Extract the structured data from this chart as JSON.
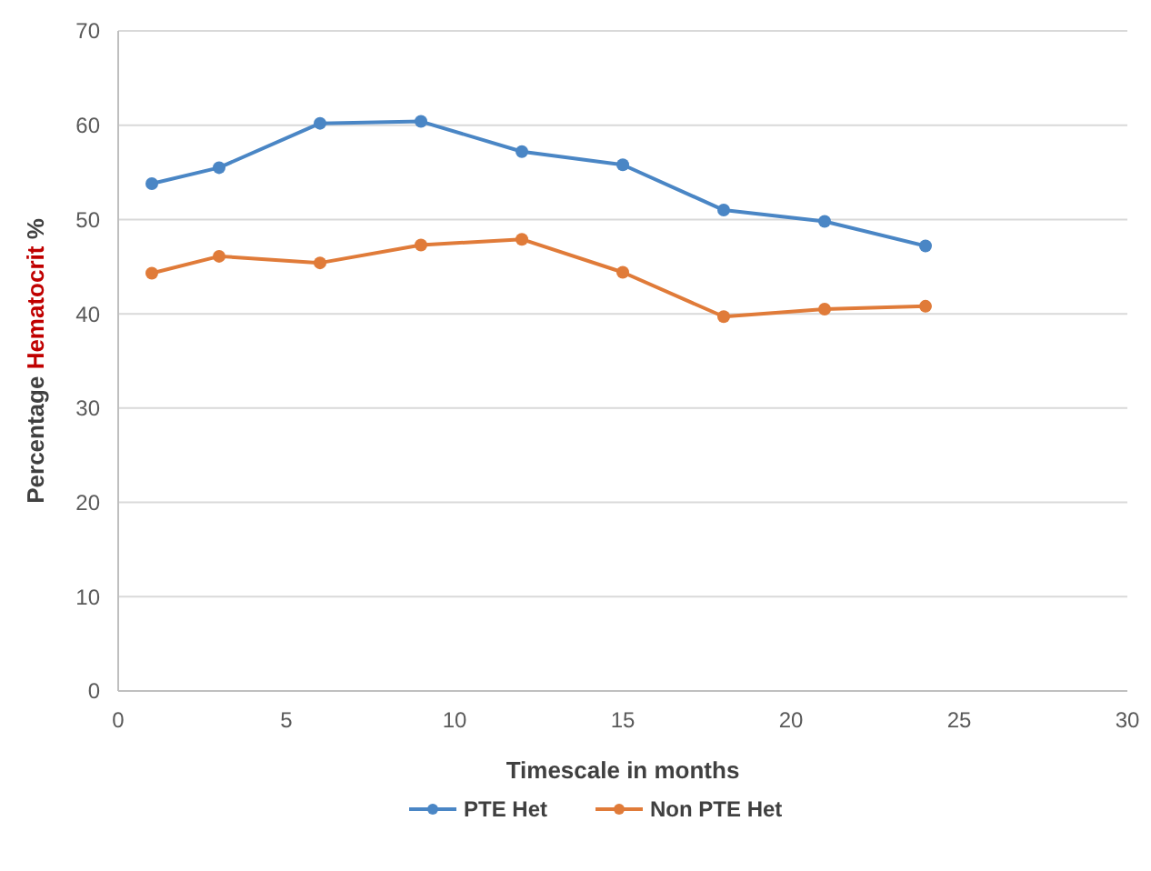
{
  "chart_data": {
    "type": "line",
    "xlabel": "Timescale in months",
    "ylabel": "Percentage Hematocrit %",
    "x": [
      1,
      3,
      6,
      9,
      12,
      15,
      18,
      21,
      24
    ],
    "series": [
      {
        "name": "PTE Het",
        "color": "#4a86c5",
        "values": [
          53.8,
          55.5,
          60.2,
          60.4,
          57.2,
          55.8,
          51,
          49.8,
          47.2
        ]
      },
      {
        "name": "Non PTE Het",
        "color": "#e07b39",
        "values": [
          44.3,
          46.1,
          45.4,
          47.3,
          47.9,
          44.4,
          39.7,
          40.5,
          40.8
        ]
      }
    ],
    "xlim": [
      0,
      30
    ],
    "xticks": [
      0,
      5,
      10,
      15,
      20,
      25,
      30
    ],
    "ylim": [
      0,
      70
    ],
    "yticks": [
      0,
      10,
      20,
      30,
      40,
      50,
      60,
      70
    ],
    "grid": "y",
    "legend": "bottom",
    "marker": "circle",
    "line_style": "solid"
  }
}
